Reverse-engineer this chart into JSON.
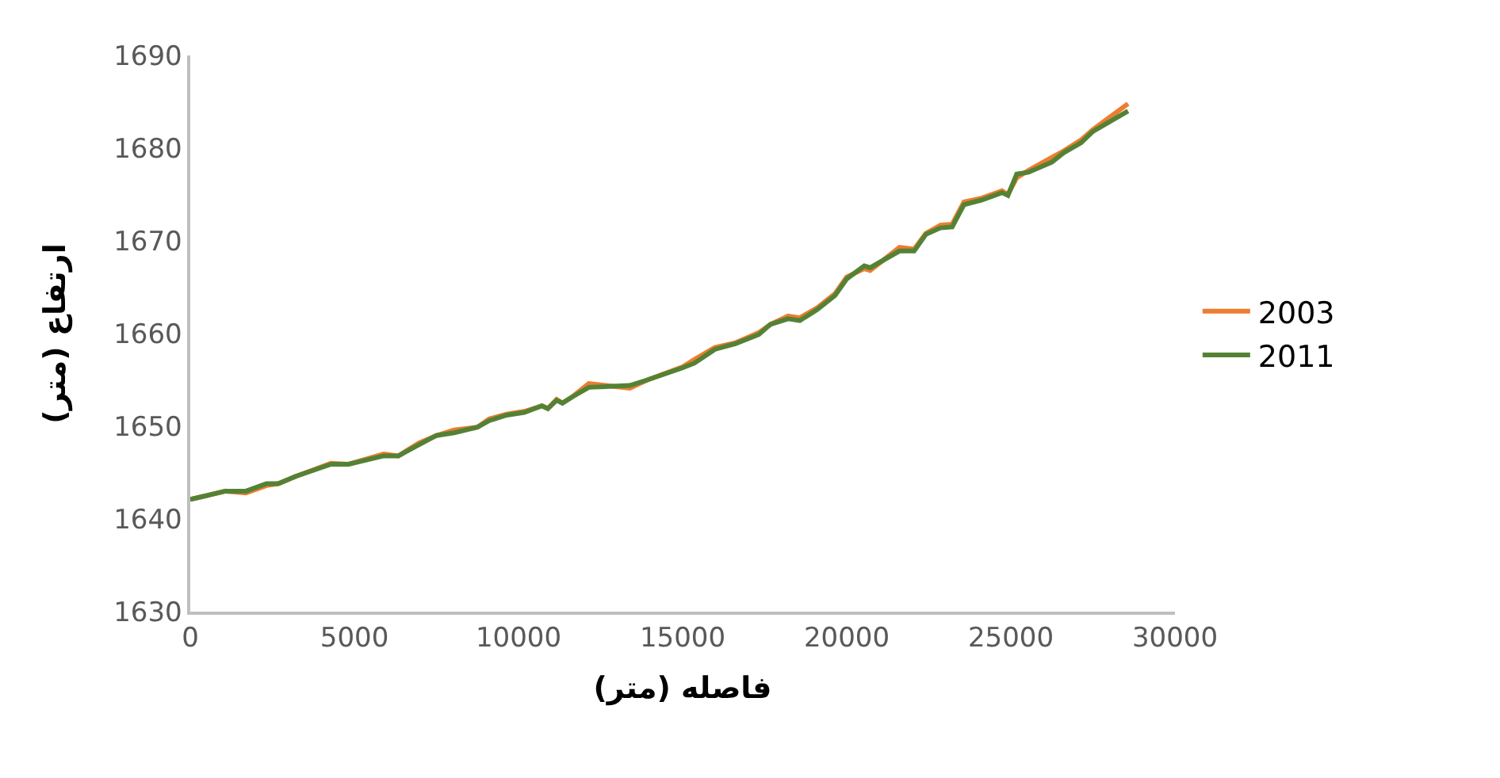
{
  "chart_data": {
    "type": "line",
    "xlabel": "فاصله (متر)",
    "ylabel": "ارتفاع (متر)",
    "xlim": [
      0,
      30000
    ],
    "xticks": [
      0,
      5000,
      10000,
      15000,
      20000,
      25000,
      30000
    ],
    "ylim": [
      1630,
      1690
    ],
    "yticks": [
      1630,
      1640,
      1650,
      1660,
      1670,
      1680,
      1690
    ],
    "legend": "right",
    "marker": "none",
    "line_style": "solid",
    "x": [
      0,
      1071,
      1696,
      2321,
      2679,
      3214,
      4286,
      4821,
      5893,
      6339,
      6964,
      7500,
      8036,
      8750,
      9107,
      9643,
      10179,
      10714,
      10893,
      11161,
      11339,
      11607,
      12143,
      13393,
      13929,
      15000,
      15357,
      15982,
      16607,
      17321,
      17679,
      18214,
      18571,
      19107,
      19643,
      20000,
      20536,
      20714,
      21607,
      22054,
      22411,
      22857,
      23214,
      23571,
      24107,
      24732,
      24911,
      25179,
      25536,
      26250,
      26607,
      27143,
      27500,
      28571
    ],
    "series": [
      {
        "name": "2003",
        "color": "#ed7d31",
        "values": [
          1642.1,
          1643.0,
          1642.8,
          1643.6,
          1643.8,
          1644.6,
          1646.0,
          1645.9,
          1647.0,
          1646.8,
          1648.2,
          1649.0,
          1649.6,
          1649.9,
          1650.8,
          1651.3,
          1651.6,
          1652.2,
          1651.9,
          1652.9,
          1652.5,
          1653.1,
          1654.6,
          1654.1,
          1655.0,
          1656.4,
          1657.2,
          1658.5,
          1659.0,
          1660.1,
          1661.0,
          1661.9,
          1661.7,
          1662.8,
          1664.3,
          1666.1,
          1667.0,
          1666.8,
          1669.3,
          1669.1,
          1670.8,
          1671.7,
          1671.8,
          1674.2,
          1674.6,
          1675.4,
          1675.0,
          1676.8,
          1677.6,
          1679.0,
          1679.7,
          1680.9,
          1682.0,
          1684.8
        ]
      },
      {
        "name": "2011",
        "color": "#548235",
        "values": [
          1642.1,
          1643.0,
          1643.0,
          1643.8,
          1643.8,
          1644.6,
          1645.9,
          1645.9,
          1646.8,
          1646.8,
          1648.0,
          1649.0,
          1649.3,
          1649.9,
          1650.6,
          1651.2,
          1651.5,
          1652.2,
          1651.9,
          1652.8,
          1652.5,
          1653.1,
          1654.2,
          1654.4,
          1655.0,
          1656.3,
          1656.8,
          1658.3,
          1658.9,
          1659.9,
          1661.0,
          1661.6,
          1661.4,
          1662.6,
          1664.1,
          1665.9,
          1667.3,
          1667.1,
          1668.9,
          1668.9,
          1670.7,
          1671.4,
          1671.5,
          1673.9,
          1674.4,
          1675.2,
          1674.9,
          1677.2,
          1677.4,
          1678.5,
          1679.5,
          1680.6,
          1681.8,
          1684.0
        ]
      }
    ]
  }
}
